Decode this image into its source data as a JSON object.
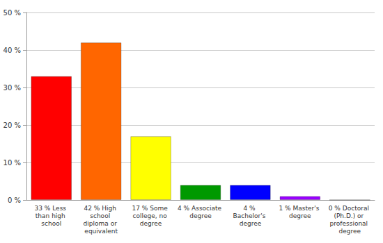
{
  "chart_data": {
    "type": "bar",
    "categories": [
      "33 % Less than high school",
      "42 % High school diploma or equivalent",
      "17 % Some college, no degree",
      "4 % Associate degree",
      "4 % Bachelor's degree",
      "1 % Master's degree",
      "0 % Doctoral (Ph.D.) or professional degree"
    ],
    "values": [
      33,
      42,
      17,
      4,
      4,
      1,
      0
    ],
    "colors": [
      "#ff0000",
      "#ff6600",
      "#ffff00",
      "#009900",
      "#0000ff",
      "#9900ff",
      "#ff00ff"
    ],
    "ylim": [
      0,
      50
    ],
    "yticks": [
      {
        "value": 0,
        "label": "0 %"
      },
      {
        "value": 10,
        "label": "10 %"
      },
      {
        "value": 20,
        "label": "20 %"
      },
      {
        "value": 30,
        "label": "30 %"
      },
      {
        "value": 40,
        "label": "40 %"
      },
      {
        "value": 50,
        "label": "50 %"
      }
    ],
    "grid": true
  }
}
